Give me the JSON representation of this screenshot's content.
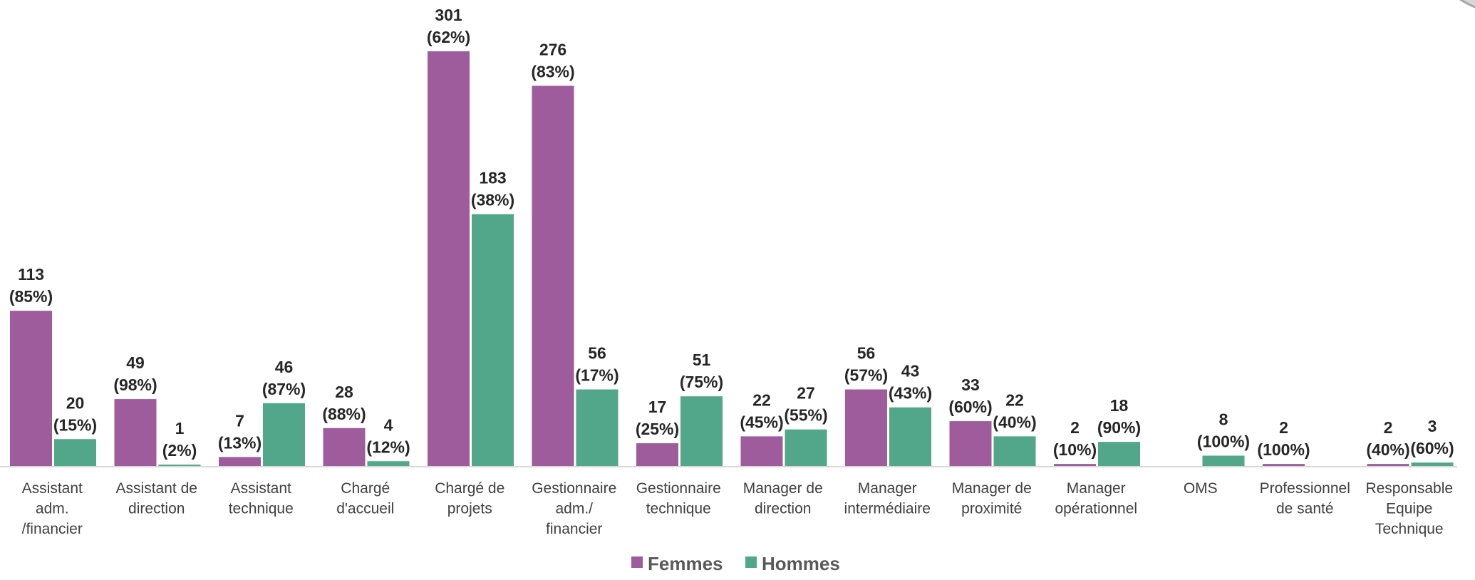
{
  "chart_data": {
    "type": "bar",
    "categories": [
      [
        "Assistant",
        "adm.",
        "/financier"
      ],
      [
        "Assistant de",
        "direction"
      ],
      [
        "Assistant",
        "technique"
      ],
      [
        "Chargé",
        "d'accueil"
      ],
      [
        "Chargé de",
        "projets"
      ],
      [
        "Gestionnaire",
        "adm./",
        "financier"
      ],
      [
        "Gestionnaire",
        "technique"
      ],
      [
        "Manager de",
        "direction"
      ],
      [
        "Manager",
        "intermédiaire"
      ],
      [
        "Manager de",
        "proximité"
      ],
      [
        "Manager",
        "opérationnel"
      ],
      [
        "OMS"
      ],
      [
        "Professionnel",
        "de santé"
      ],
      [
        "Responsable",
        "Equipe",
        "Technique"
      ]
    ],
    "series": [
      {
        "name": "Femmes",
        "color": "#9e5c9c",
        "values": [
          113,
          49,
          7,
          28,
          301,
          276,
          17,
          22,
          56,
          33,
          2,
          null,
          2,
          2
        ],
        "pct_labels": [
          "(85%)",
          "(98%)",
          "(13%)",
          "(88%)",
          "(62%)",
          "(83%)",
          "(25%)",
          "(45%)",
          "(57%)",
          "(60%)",
          "(10%)",
          "",
          "(100%)",
          "(40%)"
        ]
      },
      {
        "name": "Hommes",
        "color": "#52a689",
        "values": [
          20,
          1,
          46,
          4,
          183,
          56,
          51,
          27,
          43,
          22,
          18,
          8,
          null,
          3
        ],
        "pct_labels": [
          "(15%)",
          "(2%)",
          "(87%)",
          "(12%)",
          "(38%)",
          "(17%)",
          "(75%)",
          "(55%)",
          "(43%)",
          "(40%)",
          "(90%)",
          "(100%)",
          "",
          "(60%)"
        ]
      }
    ],
    "ylim": [
      0,
      335
    ],
    "grid": false,
    "legend_position": "bottom"
  }
}
